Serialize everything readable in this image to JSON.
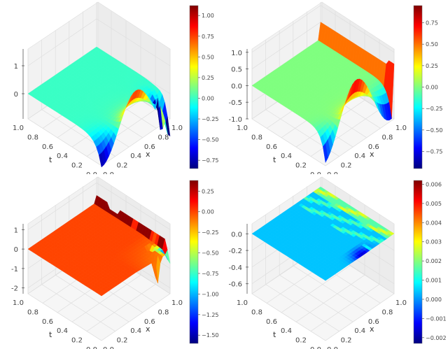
{
  "figure": {
    "layout": "2x2 grid of 3D surface plots with colorbars",
    "colormap": "jet",
    "colormap_stops": [
      "#00007f",
      "#0000ff",
      "#007fff",
      "#00ffff",
      "#7fff7f",
      "#ffff00",
      "#ff7f00",
      "#ff0000",
      "#7f0000"
    ]
  },
  "chart_data": [
    {
      "type": "surface3d",
      "position": "top-left",
      "title": "",
      "xlabel": "x",
      "ylabel": "t",
      "zlabel": "",
      "x_ticks": [
        "0.0",
        "0.2",
        "0.4",
        "0.6",
        "0.8",
        "1.0"
      ],
      "t_ticks": [
        "0.0",
        "0.2",
        "0.4",
        "0.6",
        "0.8",
        "1.0"
      ],
      "z_ticks": [
        "0",
        "1"
      ],
      "colorbar_ticks": [
        "1.00",
        "0.75",
        "0.50",
        "0.25",
        "0.00",
        "-0.25",
        "-0.50",
        "-0.75"
      ],
      "colorbar_range": [
        -0.85,
        1.12
      ],
      "description": "Flat ~0 plane for most of domain; at t near 0 a sinusoidal ridge (peak ~1 dark red near x~0.5) and trough (~-0.8 blue near x~0.8), with noisy spikes up to ~1 near x~0.9-1.0"
    },
    {
      "type": "surface3d",
      "position": "top-right",
      "title": "",
      "xlabel": "x",
      "ylabel": "t",
      "zlabel": "",
      "x_ticks": [
        "0.0",
        "0.2",
        "0.4",
        "0.6",
        "0.8",
        "1.0"
      ],
      "t_ticks": [
        "0.0",
        "0.2",
        "0.4",
        "0.6",
        "0.8",
        "1.0"
      ],
      "z_ticks": [
        "1.0",
        "0.5",
        "0.0",
        "-0.5",
        "-1.0"
      ],
      "colorbar_ticks": [
        "0.75",
        "0.50",
        "0.25",
        "0.00",
        "-0.25",
        "-0.50",
        "-0.75"
      ],
      "colorbar_range": [
        -0.95,
        0.95
      ],
      "description": "Flat 0 plane; at t=0 a sine wave (peak ~0.9 near x~0.45, trough ~-0.95 near x~0.85); at x=1 a vertical wall of value ~0.5 (orange to yellow)"
    },
    {
      "type": "surface3d",
      "position": "bottom-left",
      "title": "",
      "xlabel": "x",
      "ylabel": "t",
      "zlabel": "",
      "x_ticks": [
        "0.0",
        "0.2",
        "0.4",
        "0.6",
        "0.8",
        "1.0"
      ],
      "t_ticks": [
        "0.0",
        "0.2",
        "0.4",
        "0.6",
        "0.8",
        "1.0"
      ],
      "z_ticks": [
        "1",
        "0",
        "-1",
        "-2"
      ],
      "colorbar_ticks": [
        "0.25",
        "0.00",
        "-0.25",
        "-0.50",
        "-0.75",
        "-1.00",
        "-1.25",
        "-1.50"
      ],
      "colorbar_range": [
        -1.6,
        0.38
      ],
      "description": "Mostly flat orange (~0) plane; dark red wall segments (~0.35) along x=1 edge; noisy dips to ~-1.5 (blue) near x~0.9, t~0"
    },
    {
      "type": "surface3d",
      "position": "bottom-right",
      "title": "",
      "xlabel": "x",
      "ylabel": "t",
      "zlabel": "",
      "x_ticks": [
        "0.0",
        "0.2",
        "0.4",
        "0.6",
        "0.8",
        "1.0"
      ],
      "t_ticks": [
        "0.0",
        "0.2",
        "0.4",
        "0.6",
        "0.8",
        "1.0"
      ],
      "z_ticks": [
        "0.0",
        "-0.2",
        "-0.4",
        "-0.6"
      ],
      "colorbar_ticks": [
        "0.006",
        "0.005",
        "0.004",
        "0.003",
        "0.002",
        "0.001",
        "0.000",
        "-0.001",
        "-0.002"
      ],
      "colorbar_range": [
        -0.0023,
        0.0062
      ],
      "description": "Near-zero flat error surface colored light blue (~0.0005) with darker blue streak near t~0 and cyan/green patches near x~0.7-1.0"
    }
  ]
}
